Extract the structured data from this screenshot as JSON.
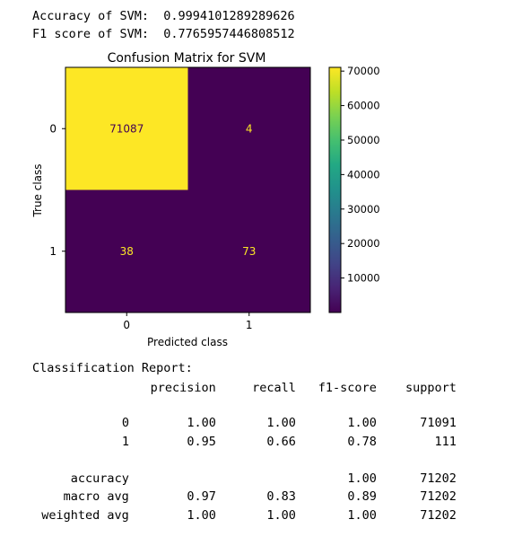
{
  "output": {
    "accuracy_line": "Accuracy of SVM:  0.9994101289289626",
    "f1_line": "F1 score of SVM:  0.7765957446808512",
    "report_title": "Classification Report:"
  },
  "report": {
    "headers": [
      "precision",
      "recall",
      "f1-score",
      "support"
    ],
    "rows": [
      {
        "label": "0",
        "precision": "1.00",
        "recall": "1.00",
        "f1": "1.00",
        "support": "71091"
      },
      {
        "label": "1",
        "precision": "0.95",
        "recall": "0.66",
        "f1": "0.78",
        "support": "111"
      },
      {
        "label": "accuracy",
        "precision": "",
        "recall": "",
        "f1": "1.00",
        "support": "71202"
      },
      {
        "label": "macro avg",
        "precision": "0.97",
        "recall": "0.83",
        "f1": "0.89",
        "support": "71202"
      },
      {
        "label": "weighted avg",
        "precision": "1.00",
        "recall": "1.00",
        "f1": "1.00",
        "support": "71202"
      }
    ]
  },
  "chart_data": {
    "type": "heatmap",
    "title": "Confusion Matrix for SVM",
    "xlabel": "Predicted class",
    "ylabel": "True class",
    "x_categories": [
      "0",
      "1"
    ],
    "y_categories": [
      "0",
      "1"
    ],
    "values": [
      [
        71087,
        4
      ],
      [
        38,
        73
      ]
    ],
    "colorbar": {
      "min": 0,
      "max": 71087,
      "ticks": [
        10000,
        20000,
        30000,
        40000,
        50000,
        60000,
        70000
      ],
      "colormap": "viridis"
    },
    "colors": {
      "high": "#fde725",
      "low": "#440154",
      "text_on_high": "#440154",
      "text_on_low": "#fde725"
    }
  }
}
